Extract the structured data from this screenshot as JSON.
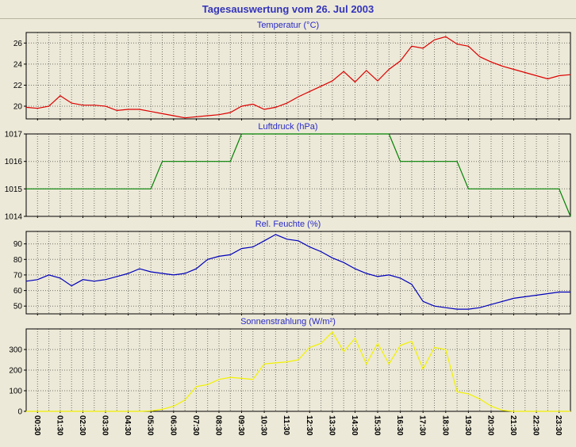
{
  "page": {
    "title": "Tagesauswertung vom 26. Jul 2003",
    "background_color": "#ece9d8",
    "title_color": "#3333bb",
    "panel_title_color": "#2929c8",
    "grid_color": "#73736a",
    "axis_color": "#000000"
  },
  "x_axis": {
    "start_hour": 0,
    "end_hour": 24,
    "step_hours": 0.5,
    "first_label_hour": 0.5,
    "label_step_hours": 1,
    "labels": [
      "00:30",
      "01:30",
      "02:30",
      "03:30",
      "04:30",
      "05:30",
      "06:30",
      "07:30",
      "08:30",
      "09:30",
      "10:30",
      "11:30",
      "12:30",
      "13:30",
      "14:30",
      "15:30",
      "16:30",
      "17:30",
      "18:30",
      "19:30",
      "20:30",
      "21:30",
      "22:30",
      "23:30"
    ]
  },
  "chart_data": [
    {
      "id": "temperatur",
      "type": "line",
      "title": "Temperatur (°C)",
      "color": "#dd0000",
      "ylim": [
        18.8,
        27.0
      ],
      "yticks": [
        20,
        22,
        24,
        26
      ],
      "x_start": "00:00",
      "x_step_minutes": 30,
      "grid": true,
      "values": [
        19.9,
        19.8,
        20.0,
        21.0,
        20.3,
        20.1,
        20.1,
        20.0,
        19.6,
        19.7,
        19.7,
        19.5,
        19.3,
        19.1,
        18.9,
        19.0,
        19.1,
        19.2,
        19.4,
        20.0,
        20.2,
        19.7,
        19.9,
        20.3,
        20.9,
        21.4,
        21.9,
        22.4,
        23.3,
        22.3,
        23.4,
        22.4,
        23.5,
        24.3,
        25.7,
        25.5,
        26.3,
        26.6,
        25.9,
        25.7,
        24.7,
        24.2,
        23.8,
        23.5,
        23.2,
        22.9,
        22.6,
        22.9,
        23.0
      ]
    },
    {
      "id": "luftdruck",
      "type": "line",
      "title": "Luftdruck (hPa)",
      "color": "#008000",
      "ylim": [
        1014,
        1017
      ],
      "yticks": [
        1014,
        1015,
        1016,
        1017
      ],
      "x_start": "00:00",
      "x_step_minutes": 30,
      "grid": true,
      "values": [
        1015,
        1015,
        1015,
        1015,
        1015,
        1015,
        1015,
        1015,
        1015,
        1015,
        1015,
        1015,
        1016,
        1016,
        1016,
        1016,
        1016,
        1016,
        1016,
        1017,
        1017,
        1017,
        1017,
        1017,
        1017,
        1017,
        1017,
        1017,
        1017,
        1017,
        1017,
        1017,
        1017,
        1016,
        1016,
        1016,
        1016,
        1016,
        1016,
        1015,
        1015,
        1015,
        1015,
        1015,
        1015,
        1015,
        1015,
        1015,
        1014
      ]
    },
    {
      "id": "feuchte",
      "type": "line",
      "title": "Rel. Feuchte (%)",
      "color": "#0000bb",
      "ylim": [
        45,
        98
      ],
      "yticks": [
        50,
        60,
        70,
        80,
        90
      ],
      "x_start": "00:00",
      "x_step_minutes": 30,
      "grid": true,
      "values": [
        66,
        67,
        70,
        68,
        63,
        67,
        66,
        67,
        69,
        71,
        74,
        72,
        71,
        70,
        71,
        74,
        80,
        82,
        83,
        87,
        88,
        92,
        96,
        93,
        92,
        88,
        85,
        81,
        78,
        74,
        71,
        69,
        70,
        68,
        64,
        53,
        50,
        49,
        48,
        48,
        49,
        51,
        53,
        55,
        56,
        57,
        58,
        59,
        59
      ]
    },
    {
      "id": "sonnenstrahlung",
      "type": "line",
      "title": "Sonnenstrahlung (W/m²)",
      "color": "#f2f200",
      "ylim": [
        0,
        400
      ],
      "yticks": [
        0,
        100,
        200,
        300
      ],
      "x_start": "00:00",
      "x_step_minutes": 30,
      "grid": true,
      "values": [
        0,
        0,
        0,
        0,
        0,
        0,
        0,
        0,
        0,
        0,
        0,
        2,
        10,
        25,
        55,
        120,
        130,
        155,
        165,
        160,
        155,
        230,
        235,
        240,
        250,
        310,
        330,
        385,
        290,
        355,
        230,
        330,
        230,
        320,
        340,
        205,
        310,
        300,
        95,
        85,
        60,
        25,
        5,
        0,
        0,
        0,
        0,
        0,
        0
      ]
    }
  ]
}
